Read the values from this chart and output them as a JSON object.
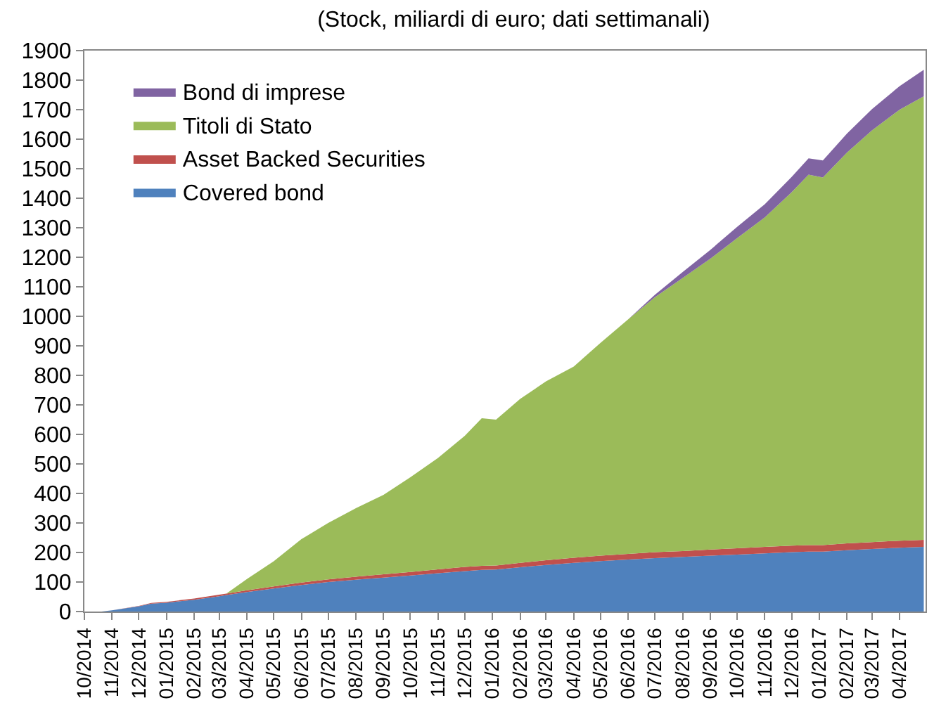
{
  "chart_data": {
    "type": "area",
    "stacked": true,
    "title": "(Stock, miliardi di euro; dati settimanali)",
    "x": [
      "2014-10-20",
      "2014-11-01",
      "2014-12-01",
      "2014-12-15",
      "2015-01-01",
      "2015-02-01",
      "2015-03-01",
      "2015-03-09",
      "2015-04-01",
      "2015-05-01",
      "2015-06-01",
      "2015-07-01",
      "2015-08-01",
      "2015-09-01",
      "2015-10-01",
      "2015-11-01",
      "2015-12-01",
      "2015-12-20",
      "2016-01-05",
      "2016-02-01",
      "2016-03-01",
      "2016-04-01",
      "2016-05-01",
      "2016-06-01",
      "2016-07-01",
      "2016-08-01",
      "2016-09-01",
      "2016-10-01",
      "2016-11-01",
      "2016-12-01",
      "2016-12-20",
      "2017-01-05",
      "2017-02-01",
      "2017-03-01",
      "2017-04-01",
      "2017-04-28"
    ],
    "series": [
      {
        "name": "Covered bond",
        "color": "#4f81bd",
        "values": [
          0,
          4,
          18,
          27,
          30,
          40,
          52,
          56,
          66,
          78,
          90,
          100,
          108,
          115,
          122,
          130,
          137,
          141,
          142,
          150,
          158,
          165,
          171,
          176,
          181,
          185,
          189,
          193,
          197,
          201,
          203,
          203,
          208,
          212,
          216,
          219
        ]
      },
      {
        "name": "Asset Backed Securities",
        "color": "#c0504d",
        "values": [
          0,
          0,
          1,
          2,
          3,
          4,
          5,
          5,
          6,
          7,
          8,
          9,
          10,
          11,
          12,
          13,
          14,
          14,
          14,
          15,
          16,
          17,
          18,
          19,
          20,
          20,
          21,
          21,
          22,
          22,
          22,
          22,
          23,
          23,
          24,
          24
        ]
      },
      {
        "name": "Titoli di Stato",
        "color": "#9bbb59",
        "values": [
          0,
          0,
          0,
          0,
          0,
          0,
          0,
          0,
          38,
          85,
          147,
          191,
          232,
          269,
          321,
          377,
          444,
          500,
          494,
          555,
          606,
          648,
          721,
          795,
          864,
          925,
          985,
          1051,
          1116,
          1197,
          1255,
          1245,
          1324,
          1395,
          1460,
          1502
        ]
      },
      {
        "name": "Bond di imprese",
        "color": "#8064a2",
        "values": [
          0,
          0,
          0,
          0,
          0,
          0,
          0,
          0,
          0,
          0,
          0,
          0,
          0,
          0,
          0,
          0,
          0,
          0,
          0,
          0,
          0,
          0,
          0,
          0,
          8,
          20,
          30,
          38,
          45,
          52,
          55,
          58,
          64,
          72,
          80,
          90
        ]
      }
    ],
    "xlim": [
      "2014-10-01",
      "2017-04-30"
    ],
    "xticks": [
      {
        "value": "2014-10-01",
        "label": "10/2014"
      },
      {
        "value": "2014-11-01",
        "label": "11/2014"
      },
      {
        "value": "2014-12-01",
        "label": "12/2014"
      },
      {
        "value": "2015-01-01",
        "label": "01/2015"
      },
      {
        "value": "2015-02-01",
        "label": "02/2015"
      },
      {
        "value": "2015-03-01",
        "label": "03/2015"
      },
      {
        "value": "2015-04-01",
        "label": "04/2015"
      },
      {
        "value": "2015-05-01",
        "label": "05/2015"
      },
      {
        "value": "2015-06-01",
        "label": "06/2015"
      },
      {
        "value": "2015-07-01",
        "label": "07/2015"
      },
      {
        "value": "2015-08-01",
        "label": "08/2015"
      },
      {
        "value": "2015-09-01",
        "label": "09/2015"
      },
      {
        "value": "2015-10-01",
        "label": "10/2015"
      },
      {
        "value": "2015-11-01",
        "label": "11/2015"
      },
      {
        "value": "2015-12-01",
        "label": "12/2015"
      },
      {
        "value": "2016-01-01",
        "label": "01/2016"
      },
      {
        "value": "2016-02-01",
        "label": "02/2016"
      },
      {
        "value": "2016-03-01",
        "label": "03/2016"
      },
      {
        "value": "2016-04-01",
        "label": "04/2016"
      },
      {
        "value": "2016-05-01",
        "label": "05/2016"
      },
      {
        "value": "2016-06-01",
        "label": "06/2016"
      },
      {
        "value": "2016-07-01",
        "label": "07/2016"
      },
      {
        "value": "2016-08-01",
        "label": "08/2016"
      },
      {
        "value": "2016-09-01",
        "label": "09/2016"
      },
      {
        "value": "2016-10-01",
        "label": "10/2016"
      },
      {
        "value": "2016-11-01",
        "label": "11/2016"
      },
      {
        "value": "2016-12-01",
        "label": "12/2016"
      },
      {
        "value": "2017-01-01",
        "label": "01/2017"
      },
      {
        "value": "2017-02-01",
        "label": "02/2017"
      },
      {
        "value": "2017-03-01",
        "label": "03/2017"
      },
      {
        "value": "2017-04-01",
        "label": "04/2017"
      }
    ],
    "ylim": [
      0,
      1900
    ],
    "yticks": [
      0,
      100,
      200,
      300,
      400,
      500,
      600,
      700,
      800,
      900,
      1000,
      1100,
      1200,
      1300,
      1400,
      1500,
      1600,
      1700,
      1800,
      1900
    ],
    "legend": "top left"
  }
}
